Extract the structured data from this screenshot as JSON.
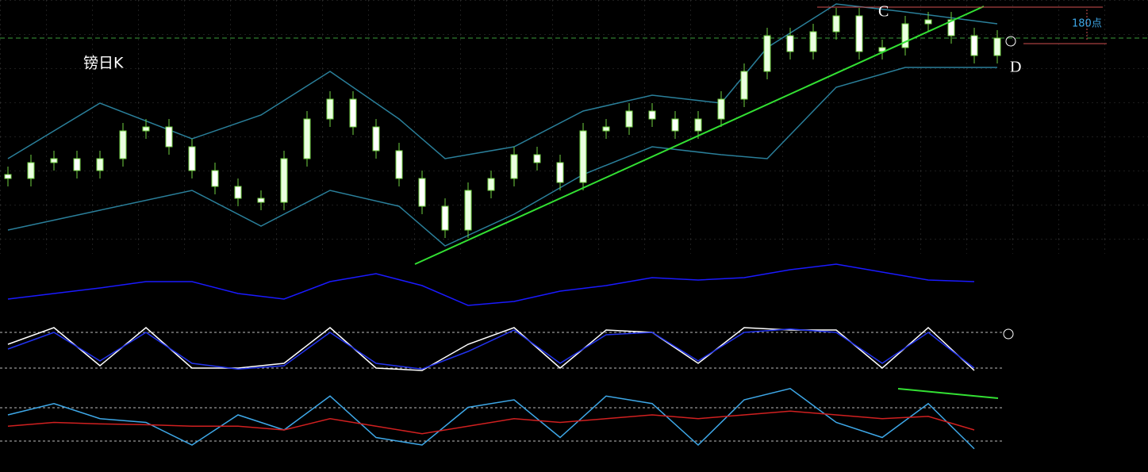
{
  "chart_data": [
    {
      "type": "candlestick",
      "title": "镑日K",
      "annotations": [
        "C",
        "D",
        "180点"
      ],
      "x": [
        0,
        1,
        2,
        3,
        4,
        5,
        6,
        7,
        8,
        9,
        10,
        11,
        12,
        13,
        14,
        15,
        16,
        17,
        18,
        19,
        20,
        21,
        22,
        23,
        24,
        25,
        26,
        27,
        28,
        29,
        30,
        31,
        32,
        33,
        34,
        35,
        36,
        37,
        38,
        39,
        40,
        41,
        42,
        43
      ],
      "open": [
        100,
        95,
        115,
        120,
        105,
        120,
        155,
        160,
        135,
        105,
        85,
        70,
        65,
        120,
        170,
        195,
        160,
        130,
        95,
        60,
        30,
        80,
        95,
        125,
        115,
        90,
        155,
        160,
        180,
        170,
        155,
        170,
        195,
        230,
        275,
        255,
        280,
        300,
        255,
        260,
        290,
        295,
        275,
        250
      ],
      "high": [
        110,
        125,
        130,
        130,
        130,
        165,
        170,
        170,
        145,
        115,
        95,
        80,
        130,
        180,
        205,
        205,
        170,
        140,
        105,
        70,
        90,
        105,
        135,
        135,
        125,
        165,
        170,
        190,
        190,
        180,
        180,
        205,
        240,
        285,
        285,
        290,
        310,
        310,
        270,
        300,
        305,
        305,
        285,
        282
      ],
      "low": [
        85,
        85,
        105,
        95,
        95,
        110,
        145,
        125,
        95,
        75,
        60,
        55,
        55,
        110,
        160,
        150,
        120,
        85,
        50,
        20,
        20,
        70,
        85,
        105,
        80,
        80,
        145,
        150,
        160,
        145,
        145,
        160,
        185,
        220,
        245,
        245,
        270,
        245,
        245,
        250,
        280,
        265,
        240,
        240
      ],
      "close": [
        95,
        115,
        120,
        105,
        120,
        155,
        160,
        135,
        105,
        85,
        70,
        65,
        120,
        170,
        195,
        160,
        130,
        95,
        60,
        30,
        80,
        95,
        125,
        115,
        90,
        155,
        160,
        180,
        170,
        155,
        170,
        195,
        230,
        275,
        255,
        280,
        300,
        255,
        260,
        290,
        295,
        275,
        250,
        272
      ],
      "up_color": "#eaffe0",
      "down_color": "#ffffff",
      "wick_color": "#6fcf3f",
      "bands": {
        "color": "#2a7f9a",
        "x": [
          0,
          4,
          8,
          11,
          14,
          17,
          19,
          22,
          25,
          28,
          31,
          33,
          36,
          39,
          43
        ],
        "upper": [
          120,
          190,
          145,
          175,
          230,
          170,
          120,
          135,
          180,
          200,
          190,
          260,
          315,
          305,
          290
        ],
        "lower": [
          30,
          55,
          80,
          35,
          80,
          60,
          10,
          50,
          100,
          135,
          125,
          120,
          210,
          235,
          235
        ]
      },
      "ylim": [
        0,
        320
      ]
    },
    {
      "type": "line",
      "x": [
        0,
        2,
        4,
        6,
        8,
        10,
        12,
        14,
        16,
        18,
        20,
        22,
        24,
        26,
        28,
        30,
        32,
        34,
        36,
        38,
        40,
        42
      ],
      "series": [
        {
          "color": "#1a1aff",
          "values": [
            -0.6,
            -0.25,
            0.1,
            0.5,
            0.5,
            -0.25,
            -0.6,
            0.5,
            1.0,
            0.25,
            -1.0,
            -0.75,
            -0.1,
            0.25,
            0.75,
            0.6,
            0.75,
            1.25,
            1.6,
            1.1,
            0.6,
            0.5
          ]
        }
      ],
      "ylim": [
        -1.5,
        2
      ]
    },
    {
      "type": "line",
      "x": [
        0,
        2,
        4,
        6,
        8,
        10,
        12,
        14,
        16,
        18,
        20,
        22,
        24,
        26,
        28,
        30,
        32,
        34,
        36,
        38,
        40,
        42
      ],
      "series": [
        {
          "color": "#ffffff",
          "values": [
            60,
            95,
            15,
            95,
            10,
            10,
            20,
            95,
            10,
            5,
            60,
            95,
            10,
            90,
            85,
            20,
            95,
            90,
            90,
            10,
            95,
            5
          ]
        },
        {
          "color": "#2233ee",
          "values": [
            50,
            85,
            25,
            85,
            20,
            8,
            15,
            85,
            20,
            8,
            45,
            90,
            20,
            80,
            85,
            25,
            85,
            92,
            85,
            20,
            85,
            10
          ]
        }
      ],
      "ylim": [
        0,
        100
      ]
    },
    {
      "type": "line",
      "x": [
        0,
        2,
        4,
        6,
        8,
        10,
        12,
        14,
        16,
        18,
        20,
        22,
        24,
        26,
        28,
        30,
        32,
        34,
        36,
        38,
        40,
        42
      ],
      "series": [
        {
          "color": "#3ea8e8",
          "values": [
            60,
            75,
            55,
            50,
            20,
            60,
            40,
            85,
            30,
            20,
            70,
            80,
            30,
            85,
            75,
            20,
            80,
            95,
            50,
            30,
            75,
            15
          ]
        },
        {
          "color": "#d02020",
          "values": [
            45,
            50,
            48,
            47,
            45,
            45,
            40,
            55,
            45,
            35,
            45,
            55,
            50,
            55,
            60,
            55,
            60,
            65,
            60,
            55,
            58,
            40
          ]
        }
      ],
      "ylim": [
        0,
        100
      ]
    }
  ]
}
